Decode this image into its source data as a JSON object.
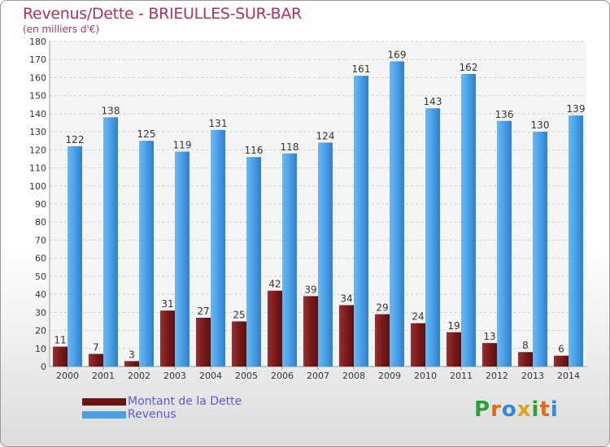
{
  "title": "Revenus/Dette - BRIEULLES-SUR-BAR",
  "subtitle": "(en milliers d'€)",
  "brand": [
    "P",
    "r",
    "o",
    "x",
    "i",
    "t",
    "i"
  ],
  "brand_colors": [
    "#2e9e3a",
    "#e06b1a",
    "#2e8be0",
    "#e0a21a",
    "#2e9e3a",
    "#e06b1a",
    "#2e8be0"
  ],
  "chart_data": {
    "type": "bar",
    "title": "Revenus/Dette - BRIEULLES-SUR-BAR",
    "ylabel": "(en milliers d'€)",
    "ylim": [
      0,
      180
    ],
    "ytick_step": 10,
    "categories": [
      "2000",
      "2001",
      "2002",
      "2003",
      "2004",
      "2005",
      "2006",
      "2007",
      "2008",
      "2009",
      "2010",
      "2011",
      "2012",
      "2013",
      "2014"
    ],
    "series": [
      {
        "name": "Montant de la Dette",
        "color": "#7a1a1a",
        "values": [
          11,
          7,
          3,
          31,
          27,
          25,
          42,
          39,
          34,
          29,
          24,
          19,
          13,
          8,
          6
        ]
      },
      {
        "name": "Revenus",
        "color": "#4a9ee6",
        "values": [
          122,
          138,
          125,
          119,
          131,
          116,
          118,
          124,
          161,
          169,
          143,
          162,
          136,
          130,
          139
        ]
      }
    ],
    "legend": "bottom-left"
  }
}
